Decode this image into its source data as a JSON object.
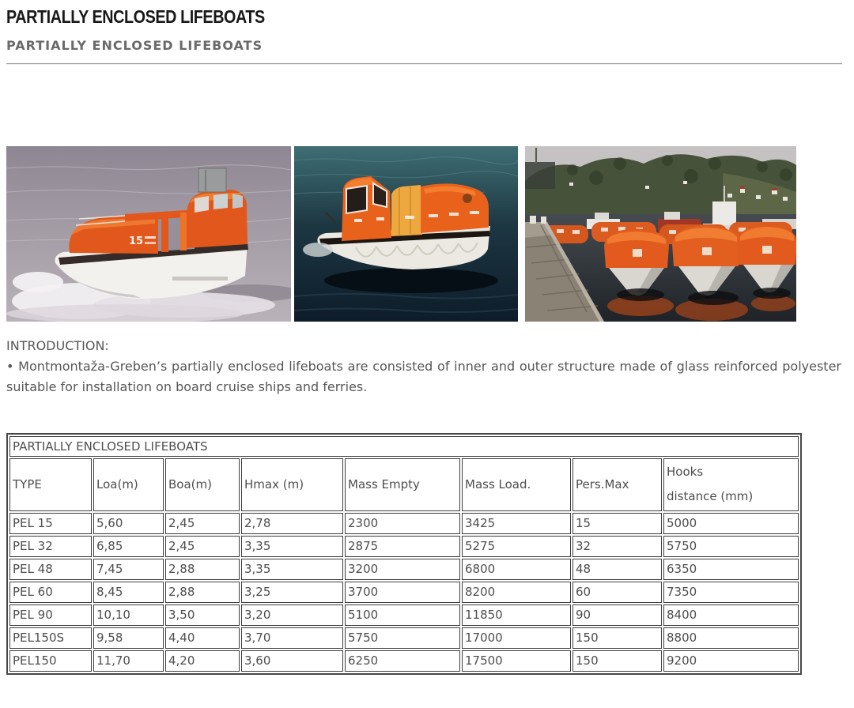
{
  "header": {
    "title": "PARTIALLY ENCLOSED LIFEBOATS",
    "subtitle": "PARTIALLY ENCLOSED LIFEBOATS"
  },
  "intro": {
    "label": "INTRODUCTION:",
    "text": "• Montmontaža-Greben’s partially enclosed lifeboats are consisted of inner and outer structure made of glass reinforced polyester suitable for installation on board cruise ships and ferries."
  },
  "table": {
    "caption": "PARTIALLY ENCLOSED LIFEBOATS",
    "headers": [
      "TYPE",
      "Loa(m)",
      "Boa(m)",
      "Hmax (m)",
      "Mass Empty",
      "Mass Load.",
      "Pers.Max",
      [
        "Hooks",
        "distance (mm)"
      ]
    ],
    "rows": [
      [
        "PEL 15",
        "5,60",
        "2,45",
        "2,78",
        "2300",
        "3425",
        "15",
        "5000"
      ],
      [
        "PEL 32",
        "6,85",
        "2,45",
        "3,35",
        "2875",
        "5275",
        "32",
        "5750"
      ],
      [
        "PEL 48",
        "7,45",
        "2,88",
        "3,35",
        "3200",
        "6800",
        "48",
        "6350"
      ],
      [
        "PEL 60",
        "8,45",
        "2,88",
        "3,25",
        "3700",
        "8200",
        "60",
        "7350"
      ],
      [
        "PEL 90",
        "10,10",
        "3,50",
        "3,20",
        "5100",
        "11850",
        "90",
        "8400"
      ],
      [
        "PEL150S",
        "9,58",
        "4,40",
        "3,70",
        "5750",
        "17000",
        "150",
        "8800"
      ],
      [
        "PEL150",
        "11,70",
        "4,20",
        "3,60",
        "6250",
        "17500",
        "150",
        "9200"
      ]
    ]
  },
  "colors": {
    "accent_orange": "#e2581c",
    "heading_black": "#181818",
    "heading_gray": "#6a6a6a",
    "body_text": "#565656",
    "table_border": "#3e3e3e"
  }
}
